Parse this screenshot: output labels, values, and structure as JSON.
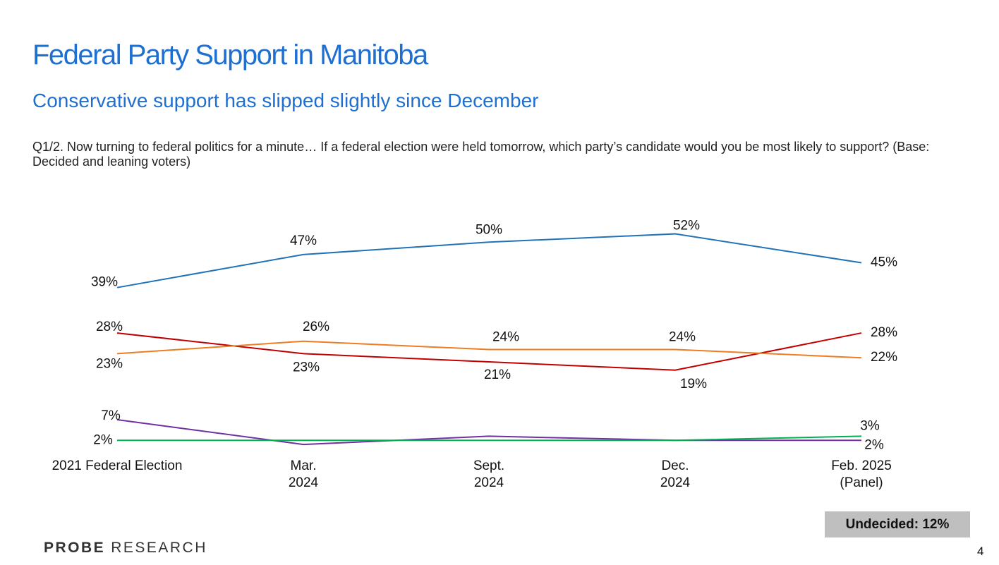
{
  "title": "Federal Party Support in Manitoba",
  "subtitle": "Conservative support has slipped slightly since December",
  "question": "Q1/2. Now turning to federal politics for a minute… If a federal election were held tomorrow, which party’s candidate would you be most likely to support? (Base: Decided and leaning voters)",
  "undecided": "Undecided: 12%",
  "logo": {
    "bold": "PROBE",
    "light": "RESEARCH"
  },
  "page_number": "4",
  "chart_data": {
    "type": "line",
    "categories": [
      [
        "2021 Federal Election"
      ],
      [
        "Mar.",
        "2024"
      ],
      [
        "Sept.",
        "2024"
      ],
      [
        "Dec.",
        "2024"
      ],
      [
        "Feb. 2025",
        "(Panel)"
      ]
    ],
    "ylim": [
      0,
      55
    ],
    "series": [
      {
        "color": "#2272b6",
        "values": [
          39,
          47,
          50,
          52,
          45
        ],
        "value_labels": [
          "39%",
          "47%",
          "50%",
          "52%",
          "45%"
        ]
      },
      {
        "color": "#c00000",
        "values": [
          28,
          23,
          21,
          19,
          28
        ],
        "value_labels": [
          "28%",
          "23%",
          "21%",
          "19%",
          "28%"
        ]
      },
      {
        "color": "#ee7d22",
        "values": [
          23,
          26,
          24,
          24,
          22
        ],
        "value_labels": [
          "23%",
          "26%",
          "24%",
          "24%",
          "22%"
        ]
      },
      {
        "color": "#7030a0",
        "values": [
          7,
          1,
          3,
          2,
          2
        ],
        "value_labels": [
          "7%",
          null,
          null,
          null,
          "2%"
        ]
      },
      {
        "color": "#00b050",
        "values": [
          2,
          2,
          2,
          2,
          3
        ],
        "value_labels": [
          "2%",
          null,
          null,
          null,
          "3%"
        ]
      }
    ]
  }
}
